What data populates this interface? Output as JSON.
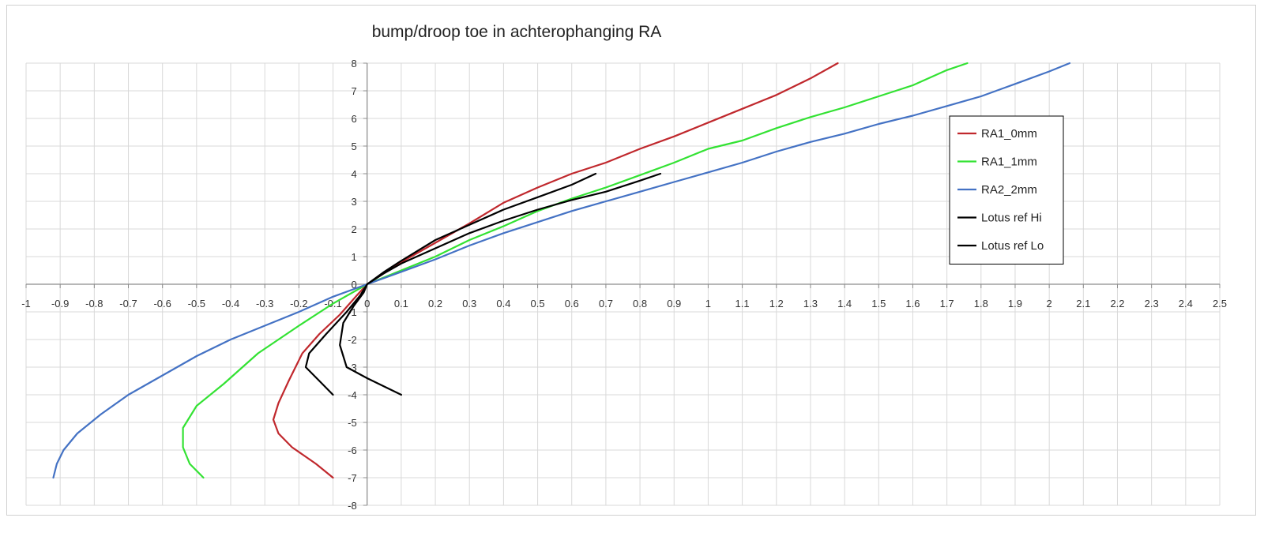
{
  "chart_data": {
    "type": "line",
    "title": "bump/droop toe in achterophanging RA",
    "xlabel": "",
    "ylabel": "",
    "xlim": [
      -1,
      2.5
    ],
    "ylim": [
      -8,
      8
    ],
    "x_ticks": [
      "-1",
      "-0.9",
      "-0.8",
      "-0.7",
      "-0.6",
      "-0.5",
      "-0.4",
      "-0.3",
      "-0.2",
      "-0.1",
      "0",
      "0.1",
      "0.2",
      "0.3",
      "0.4",
      "0.5",
      "0.6",
      "0.7",
      "0.8",
      "0.9",
      "1",
      "1.1",
      "1.2",
      "1.3",
      "1.4",
      "1.5",
      "1.6",
      "1.7",
      "1.8",
      "1.9",
      "2",
      "2.1",
      "2.2",
      "2.3",
      "2.4",
      "2.5"
    ],
    "y_ticks": [
      "-8",
      "-7",
      "-6",
      "-5",
      "-4",
      "-3",
      "-2",
      "-1",
      "0",
      "1",
      "2",
      "3",
      "4",
      "5",
      "6",
      "7",
      "8"
    ],
    "grid": true,
    "legend_position": "right",
    "series": [
      {
        "name": "RA1_0mm",
        "color": "#c0282d",
        "points": [
          [
            -0.1,
            -7
          ],
          [
            -0.15,
            -6.5
          ],
          [
            -0.22,
            -5.9
          ],
          [
            -0.26,
            -5.4
          ],
          [
            -0.275,
            -4.9
          ],
          [
            -0.26,
            -4.3
          ],
          [
            -0.23,
            -3.5
          ],
          [
            -0.19,
            -2.5
          ],
          [
            -0.14,
            -1.8
          ],
          [
            -0.08,
            -1.1
          ],
          [
            -0.03,
            -0.4
          ],
          [
            0,
            0
          ],
          [
            0.05,
            0.4
          ],
          [
            0.1,
            0.8
          ],
          [
            0.2,
            1.5
          ],
          [
            0.3,
            2.2
          ],
          [
            0.4,
            2.95
          ],
          [
            0.5,
            3.5
          ],
          [
            0.6,
            4
          ],
          [
            0.7,
            4.4
          ],
          [
            0.8,
            4.9
          ],
          [
            0.9,
            5.35
          ],
          [
            1,
            5.85
          ],
          [
            1.1,
            6.35
          ],
          [
            1.2,
            6.85
          ],
          [
            1.3,
            7.45
          ],
          [
            1.38,
            8
          ]
        ]
      },
      {
        "name": "RA1_1mm",
        "color": "#33e233",
        "points": [
          [
            -0.48,
            -7
          ],
          [
            -0.52,
            -6.5
          ],
          [
            -0.54,
            -5.9
          ],
          [
            -0.54,
            -5.2
          ],
          [
            -0.5,
            -4.4
          ],
          [
            -0.42,
            -3.6
          ],
          [
            -0.32,
            -2.5
          ],
          [
            -0.2,
            -1.5
          ],
          [
            -0.1,
            -0.7
          ],
          [
            0,
            0
          ],
          [
            0.1,
            0.5
          ],
          [
            0.2,
            1
          ],
          [
            0.3,
            1.6
          ],
          [
            0.4,
            2.1
          ],
          [
            0.5,
            2.65
          ],
          [
            0.6,
            3.1
          ],
          [
            0.7,
            3.5
          ],
          [
            0.8,
            3.95
          ],
          [
            0.9,
            4.4
          ],
          [
            1,
            4.9
          ],
          [
            1.1,
            5.2
          ],
          [
            1.2,
            5.65
          ],
          [
            1.3,
            6.05
          ],
          [
            1.4,
            6.4
          ],
          [
            1.5,
            6.8
          ],
          [
            1.6,
            7.2
          ],
          [
            1.7,
            7.75
          ],
          [
            1.76,
            8
          ]
        ]
      },
      {
        "name": "RA2_2mm",
        "color": "#4472c4",
        "points": [
          [
            -0.92,
            -7
          ],
          [
            -0.91,
            -6.5
          ],
          [
            -0.89,
            -6
          ],
          [
            -0.85,
            -5.4
          ],
          [
            -0.78,
            -4.7
          ],
          [
            -0.7,
            -4
          ],
          [
            -0.6,
            -3.3
          ],
          [
            -0.5,
            -2.6
          ],
          [
            -0.4,
            -2
          ],
          [
            -0.3,
            -1.5
          ],
          [
            -0.2,
            -1
          ],
          [
            -0.1,
            -0.45
          ],
          [
            0,
            0
          ],
          [
            0.1,
            0.45
          ],
          [
            0.2,
            0.9
          ],
          [
            0.3,
            1.4
          ],
          [
            0.4,
            1.85
          ],
          [
            0.5,
            2.25
          ],
          [
            0.6,
            2.65
          ],
          [
            0.7,
            3
          ],
          [
            0.8,
            3.35
          ],
          [
            0.9,
            3.7
          ],
          [
            1,
            4.05
          ],
          [
            1.1,
            4.4
          ],
          [
            1.2,
            4.8
          ],
          [
            1.3,
            5.15
          ],
          [
            1.4,
            5.45
          ],
          [
            1.5,
            5.8
          ],
          [
            1.6,
            6.1
          ],
          [
            1.7,
            6.45
          ],
          [
            1.8,
            6.8
          ],
          [
            1.9,
            7.25
          ],
          [
            2,
            7.7
          ],
          [
            2.06,
            8
          ]
        ]
      },
      {
        "name": "Lotus ref Hi",
        "color": "#000000",
        "points": [
          [
            -0.1,
            -4
          ],
          [
            -0.14,
            -3.5
          ],
          [
            -0.18,
            -3
          ],
          [
            -0.17,
            -2.5
          ],
          [
            -0.12,
            -1.8
          ],
          [
            -0.06,
            -1
          ],
          [
            -0.02,
            -0.4
          ],
          [
            0,
            0
          ],
          [
            0.05,
            0.45
          ],
          [
            0.1,
            0.85
          ],
          [
            0.2,
            1.6
          ],
          [
            0.3,
            2.15
          ],
          [
            0.4,
            2.7
          ],
          [
            0.5,
            3.15
          ],
          [
            0.6,
            3.6
          ],
          [
            0.67,
            4
          ]
        ]
      },
      {
        "name": "Lotus ref Lo",
        "color": "#000000",
        "points": [
          [
            0.1,
            -4
          ],
          [
            0,
            -3.4
          ],
          [
            -0.06,
            -3
          ],
          [
            -0.08,
            -2.2
          ],
          [
            -0.07,
            -1.4
          ],
          [
            -0.04,
            -0.8
          ],
          [
            -0.01,
            -0.3
          ],
          [
            0,
            0
          ],
          [
            0.05,
            0.4
          ],
          [
            0.1,
            0.75
          ],
          [
            0.2,
            1.3
          ],
          [
            0.3,
            1.85
          ],
          [
            0.4,
            2.3
          ],
          [
            0.5,
            2.7
          ],
          [
            0.6,
            3.05
          ],
          [
            0.7,
            3.35
          ],
          [
            0.8,
            3.75
          ],
          [
            0.86,
            4
          ]
        ]
      }
    ]
  }
}
